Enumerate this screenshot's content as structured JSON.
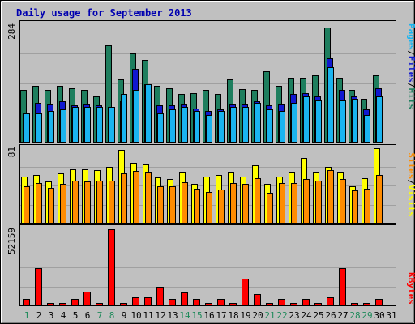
{
  "chart_data": {
    "type": "bar",
    "title": "Daily usage for September 2013",
    "categories": [
      "1",
      "2",
      "3",
      "4",
      "5",
      "6",
      "7",
      "8",
      "9",
      "10",
      "11",
      "12",
      "13",
      "14",
      "15",
      "16",
      "17",
      "18",
      "19",
      "20",
      "21",
      "22",
      "23",
      "24",
      "25",
      "26",
      "27",
      "28",
      "29",
      "30",
      "31"
    ],
    "weekend_days": [
      "1",
      "7",
      "8",
      "14",
      "15",
      "21",
      "22",
      "28",
      "29"
    ],
    "panels": [
      {
        "name": "hits-files-pages",
        "max_label": "284",
        "ylim": [
          0,
          284
        ],
        "axis_labels": [
          "Pages",
          "/",
          "Files",
          "/",
          "Hits"
        ],
        "series": [
          {
            "name": "Hits",
            "color": "#1e7e5e",
            "values": [
              125,
              135,
              125,
              135,
              130,
              125,
              110,
              232,
              150,
              213,
              198,
              135,
              130,
              115,
              118,
              125,
              115,
              150,
              128,
              125,
              170,
              135,
              155,
              155,
              160,
              275,
              155,
              125,
              105,
              160,
              0
            ]
          },
          {
            "name": "Files",
            "color": "#1018d0",
            "values": [
              70,
              95,
              90,
              98,
              88,
              90,
              88,
              85,
              98,
              175,
              140,
              88,
              88,
              90,
              82,
              75,
              80,
              90,
              90,
              98,
              88,
              90,
              115,
              118,
              110,
              200,
              125,
              110,
              80,
              130,
              0
            ]
          },
          {
            "name": "Pages",
            "color": "#1ab4f0",
            "values": [
              70,
              70,
              75,
              80,
              85,
              85,
              85,
              85,
              115,
              125,
              140,
              70,
              80,
              85,
              75,
              65,
              75,
              85,
              85,
              95,
              80,
              75,
              95,
              110,
              100,
              180,
              100,
              105,
              65,
              110,
              0
            ]
          }
        ]
      },
      {
        "name": "visits-sites",
        "max_label": "81",
        "ylim": [
          0,
          81
        ],
        "axis_labels": [
          "Sites",
          "/",
          "Visits"
        ],
        "series": [
          {
            "name": "Visits",
            "color": "#ffff00",
            "values": [
              50,
              52,
              45,
              53,
              58,
              58,
              57,
              60,
              78,
              65,
              63,
              49,
              47,
              55,
              42,
              50,
              52,
              55,
              50,
              62,
              42,
              50,
              55,
              70,
              55,
              60,
              55,
              40,
              48,
              80,
              0
            ]
          },
          {
            "name": "Sites",
            "color": "#ff8c00",
            "values": [
              40,
              43,
              38,
              42,
              46,
              45,
              46,
              46,
              53,
              56,
              55,
              40,
              40,
              44,
              37,
              34,
              36,
              43,
              42,
              48,
              33,
              43,
              43,
              47,
              46,
              57,
              47,
              35,
              37,
              52,
              0
            ]
          }
        ]
      },
      {
        "name": "kbytes",
        "max_label": "52159",
        "ylim": [
          0,
          52159
        ],
        "axis_labels": [
          "KBytes"
        ],
        "series": [
          {
            "name": "KBytes",
            "color": "#ff0000",
            "values": [
              4700,
              25500,
              1600,
              1600,
              4700,
              9600,
              1600,
              52159,
              1600,
              5700,
              5700,
              12500,
              4700,
              9000,
              4500,
              1600,
              4700,
              1600,
              18200,
              8000,
              1600,
              4700,
              1600,
              4700,
              1600,
              5700,
              25500,
              1600,
              1600,
              4700,
              0
            ]
          }
        ]
      }
    ]
  }
}
